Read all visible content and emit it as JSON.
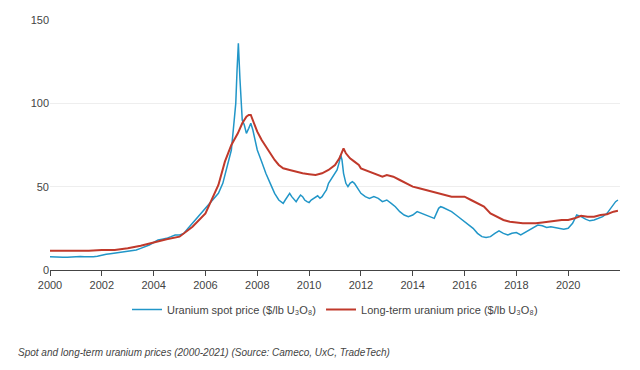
{
  "chart_data": {
    "type": "line",
    "caption": "Spot and long-term uranium prices (2000-2021) (Source: Cameco, UxC, TradeTech)",
    "series": [
      {
        "name": "Uranium spot price ($/lb U₃O₈)",
        "color": "#2196c8",
        "x": [
          2000,
          2000.17,
          2000.33,
          2000.5,
          2000.67,
          2000.83,
          2001,
          2001.17,
          2001.33,
          2001.5,
          2001.67,
          2001.83,
          2002,
          2002.17,
          2002.33,
          2002.5,
          2002.67,
          2002.83,
          2003,
          2003.17,
          2003.33,
          2003.5,
          2003.67,
          2003.83,
          2004,
          2004.17,
          2004.33,
          2004.5,
          2004.67,
          2004.83,
          2005,
          2005.17,
          2005.33,
          2005.5,
          2005.67,
          2005.83,
          2006,
          2006.17,
          2006.33,
          2006.5,
          2006.67,
          2006.83,
          2007,
          2007.08,
          2007.17,
          2007.22,
          2007.27,
          2007.33,
          2007.38,
          2007.42,
          2007.5,
          2007.58,
          2007.67,
          2007.75,
          2007.83,
          2007.92,
          2008,
          2008.17,
          2008.33,
          2008.5,
          2008.67,
          2008.83,
          2009,
          2009.08,
          2009.17,
          2009.25,
          2009.33,
          2009.42,
          2009.5,
          2009.58,
          2009.67,
          2009.75,
          2009.83,
          2009.92,
          2010,
          2010.08,
          2010.17,
          2010.25,
          2010.33,
          2010.42,
          2010.5,
          2010.58,
          2010.67,
          2010.75,
          2010.83,
          2010.92,
          2011,
          2011.08,
          2011.17,
          2011.22,
          2011.27,
          2011.33,
          2011.42,
          2011.5,
          2011.58,
          2011.67,
          2011.75,
          2011.83,
          2011.92,
          2012,
          2012.17,
          2012.33,
          2012.5,
          2012.67,
          2012.83,
          2013,
          2013.17,
          2013.33,
          2013.5,
          2013.67,
          2013.83,
          2014,
          2014.17,
          2014.33,
          2014.5,
          2014.67,
          2014.83,
          2015,
          2015.08,
          2015.17,
          2015.33,
          2015.5,
          2015.67,
          2015.83,
          2016,
          2016.17,
          2016.33,
          2016.5,
          2016.67,
          2016.83,
          2017,
          2017.17,
          2017.33,
          2017.5,
          2017.67,
          2017.83,
          2018,
          2018.17,
          2018.33,
          2018.5,
          2018.67,
          2018.83,
          2019,
          2019.17,
          2019.33,
          2019.5,
          2019.67,
          2019.83,
          2020,
          2020.17,
          2020.33,
          2020.5,
          2020.67,
          2020.83,
          2021,
          2021.17,
          2021.33,
          2021.5,
          2021.67,
          2021.83,
          2021.92
        ],
        "values": [
          8,
          7.8,
          7.5,
          7.6,
          7.7,
          7.9,
          8,
          8.1,
          8,
          7.9,
          8,
          8.2,
          9,
          9.5,
          9.8,
          10.2,
          10.5,
          10.8,
          11,
          11.5,
          12,
          13,
          14,
          15,
          16.5,
          18,
          18.5,
          19,
          20,
          21,
          21,
          22,
          25,
          28,
          31,
          34,
          37,
          40,
          43,
          46,
          52,
          62,
          72,
          85,
          100,
          120,
          136,
          115,
          95,
          90,
          87,
          82,
          85,
          88,
          84,
          78,
          72,
          65,
          58,
          52,
          46,
          42,
          40,
          42,
          44,
          46,
          44,
          42,
          41,
          43,
          45,
          44,
          42,
          41,
          40.5,
          42,
          43,
          44,
          44.5,
          43,
          44,
          46,
          48,
          52,
          54,
          56,
          58,
          60,
          65,
          69,
          66,
          58,
          52,
          50,
          52,
          53,
          52,
          50,
          48,
          46,
          44,
          43,
          44,
          43,
          41,
          42,
          40,
          38,
          35,
          33,
          32,
          33,
          35,
          34,
          33,
          32,
          31,
          37,
          38,
          37.5,
          36.5,
          35,
          33,
          31,
          29,
          27,
          25,
          22,
          20,
          19.5,
          20,
          22,
          23.5,
          22,
          21,
          22,
          22.5,
          21,
          22.5,
          24,
          26,
          27,
          26.5,
          25.5,
          26,
          25.5,
          25,
          24.5,
          25,
          28,
          33,
          32,
          30.5,
          29.5,
          30,
          31,
          32,
          34,
          38,
          41,
          42
        ]
      },
      {
        "name": "Long-term uranium price ($/lb U₃O₈)",
        "color": "#c0392b",
        "x": [
          2000,
          2000.5,
          2001,
          2001.5,
          2002,
          2002.5,
          2003,
          2003.5,
          2004,
          2004.5,
          2005,
          2005.5,
          2006,
          2006.25,
          2006.5,
          2006.75,
          2007,
          2007.25,
          2007.42,
          2007.58,
          2007.67,
          2007.75,
          2007.83,
          2007.92,
          2008,
          2008.17,
          2008.33,
          2008.5,
          2008.67,
          2008.83,
          2009,
          2009.25,
          2009.5,
          2009.75,
          2010,
          2010.25,
          2010.5,
          2010.75,
          2011,
          2011.17,
          2011.25,
          2011.33,
          2011.42,
          2011.58,
          2011.75,
          2011.92,
          2012,
          2012.17,
          2012.33,
          2012.5,
          2012.67,
          2012.83,
          2013,
          2013.25,
          2013.5,
          2013.75,
          2014,
          2014.25,
          2014.5,
          2014.75,
          2015,
          2015.25,
          2015.5,
          2015.75,
          2016,
          2016.25,
          2016.5,
          2016.75,
          2017,
          2017.25,
          2017.5,
          2017.75,
          2018,
          2018.25,
          2018.5,
          2018.75,
          2019,
          2019.25,
          2019.5,
          2019.75,
          2020,
          2020.25,
          2020.5,
          2020.75,
          2021,
          2021.25,
          2021.5,
          2021.75,
          2021.92
        ],
        "values": [
          11.5,
          11.5,
          11.5,
          11.5,
          12,
          12,
          13,
          14.5,
          16.5,
          18.5,
          20,
          26,
          34,
          42,
          51,
          65,
          75,
          82,
          88,
          92,
          93,
          93,
          90,
          87,
          83,
          78,
          74,
          70,
          66,
          63,
          61,
          60,
          59,
          58,
          57.5,
          57,
          58,
          60,
          63,
          67,
          70,
          73,
          70,
          67,
          65,
          63,
          61,
          60,
          59,
          58,
          57,
          56,
          57,
          56,
          54,
          52,
          50,
          49,
          48,
          47,
          46,
          45,
          44,
          44,
          44,
          42,
          40,
          38,
          34,
          32,
          30,
          29,
          28.5,
          28,
          28,
          28,
          28.5,
          29,
          29.5,
          30,
          30,
          31,
          32.5,
          32,
          32,
          33,
          33.5,
          35,
          35.5
        ]
      }
    ],
    "xlim": [
      2000,
      2022
    ],
    "xticks": [
      2000,
      2002,
      2004,
      2006,
      2008,
      2010,
      2012,
      2014,
      2016,
      2018,
      2020
    ],
    "ylim": [
      0,
      150
    ],
    "yticks": [
      0,
      50,
      100,
      150
    ],
    "grid": true,
    "legend": "bottom"
  }
}
